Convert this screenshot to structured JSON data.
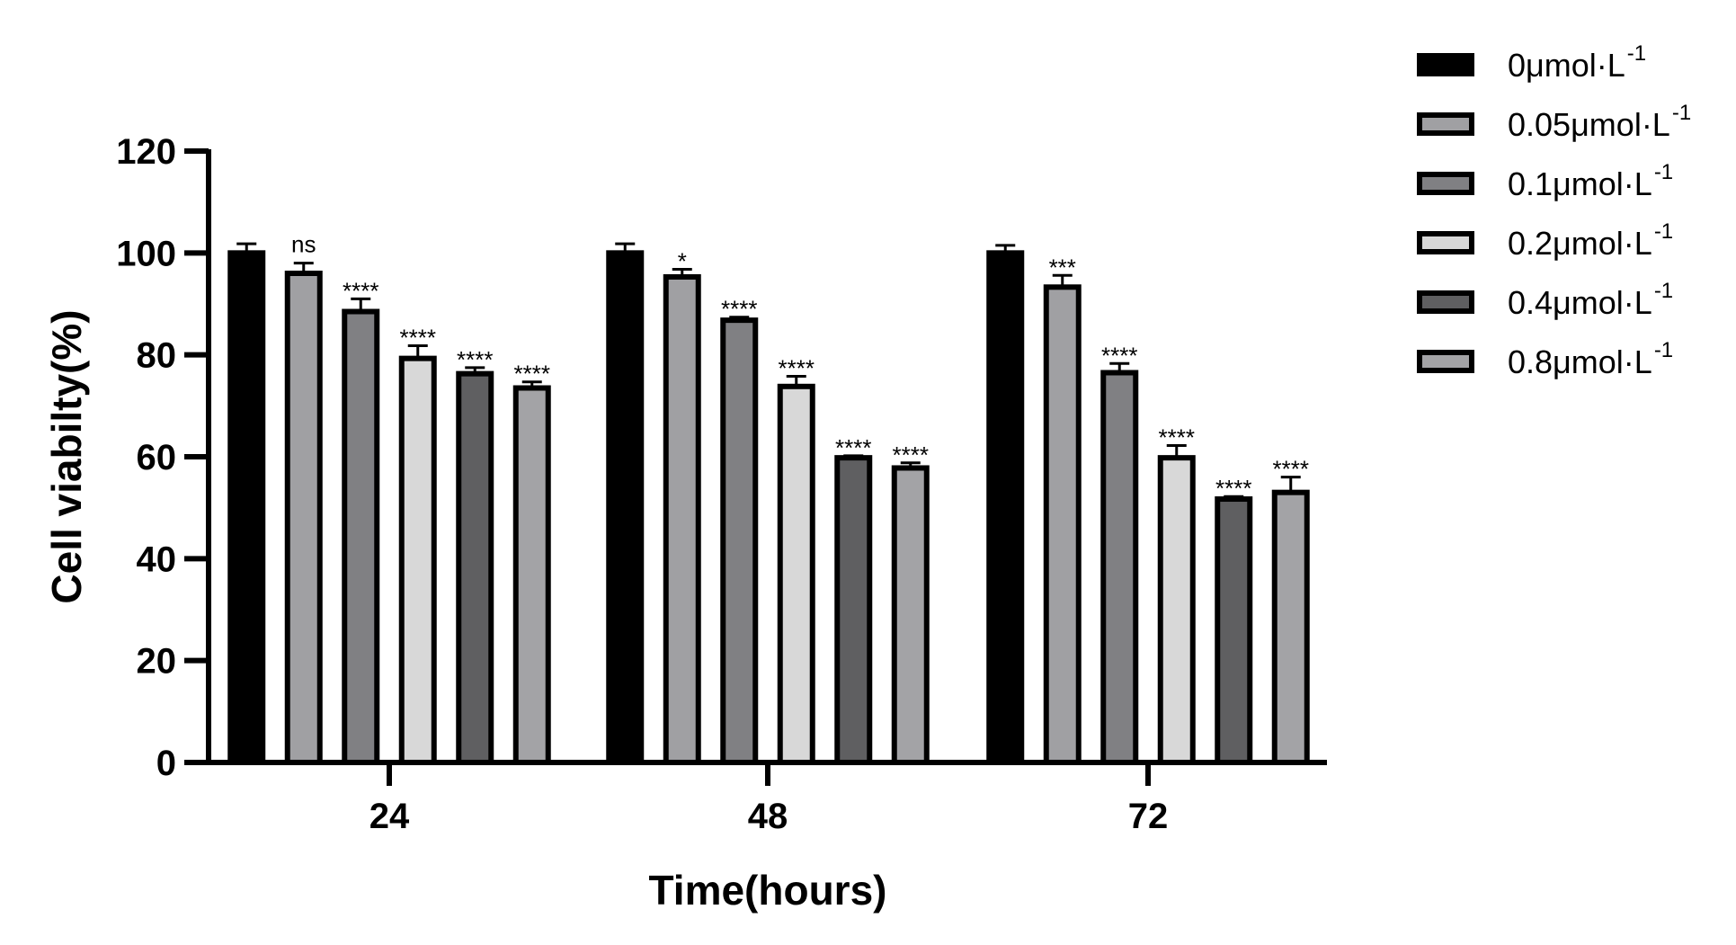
{
  "chart_data": {
    "type": "bar",
    "title": "",
    "xlabel": "Time(hours)",
    "ylabel": "Cell viabilty(%)",
    "ylim": [
      0,
      120
    ],
    "yticks": [
      "0",
      "20",
      "40",
      "60",
      "80",
      "100",
      "120"
    ],
    "categories": [
      "24",
      "48",
      "72"
    ],
    "legend_position": "top-right",
    "grid": false,
    "series": [
      {
        "name": "0μmol·L",
        "unit_exponent": "-1",
        "color": "#000000",
        "values": [
          100,
          100,
          100
        ],
        "errors": [
          1.8,
          1.8,
          1.5
        ],
        "significance": [
          "",
          "",
          ""
        ]
      },
      {
        "name": "0.05μmol·L",
        "unit_exponent": "-1",
        "color": "#a0a0a3",
        "values": [
          96,
          95.3,
          93.3
        ],
        "errors": [
          2.0,
          1.5,
          2.3
        ],
        "significance": [
          "ns",
          "*",
          "***"
        ]
      },
      {
        "name": "0.1μmol·L",
        "unit_exponent": "-1",
        "color": "#808083",
        "values": [
          88.5,
          86.8,
          76.5
        ],
        "errors": [
          2.5,
          0.6,
          1.8
        ],
        "significance": [
          "****",
          "****",
          "****"
        ]
      },
      {
        "name": "0.2μmol·L",
        "unit_exponent": "-1",
        "color": "#d8d8d8",
        "values": [
          79.3,
          73.8,
          59.8
        ],
        "errors": [
          2.5,
          2.0,
          2.4
        ],
        "significance": [
          "****",
          "****",
          "****"
        ]
      },
      {
        "name": "0.4μmol·L",
        "unit_exponent": "-1",
        "color": "#5f5f61",
        "values": [
          76.3,
          59.8,
          51.7
        ],
        "errors": [
          1.2,
          0.4,
          0.5
        ],
        "significance": [
          "****",
          "****",
          "****"
        ]
      },
      {
        "name": "0.8μmol·L",
        "unit_exponent": "-1",
        "color": "#a3a3a6",
        "values": [
          73.5,
          57.8,
          53.0
        ],
        "errors": [
          1.2,
          1.0,
          3.0
        ],
        "significance": [
          "****",
          "****",
          "****"
        ]
      }
    ]
  }
}
